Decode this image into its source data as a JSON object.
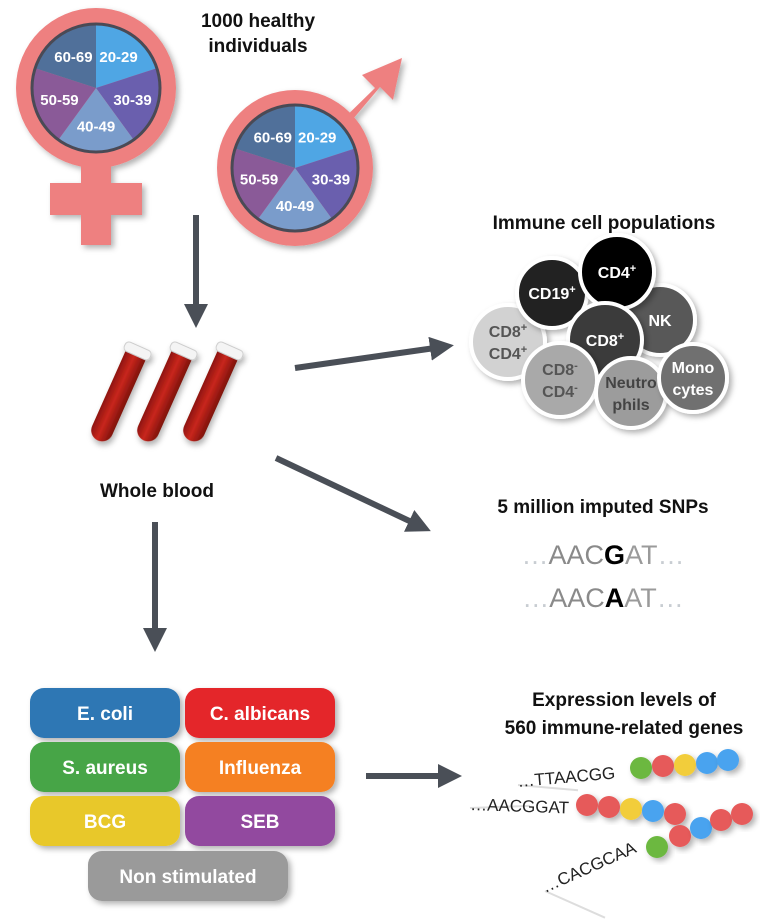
{
  "title": {
    "line1": "1000 healthy",
    "line2": "individuals"
  },
  "age_groups": [
    {
      "label": "20-29",
      "color": "#4fa6e4"
    },
    {
      "label": "30-39",
      "color": "#6a5fae"
    },
    {
      "label": "40-49",
      "color": "#7a9ccb"
    },
    {
      "label": "50-59",
      "color": "#8a5a98"
    },
    {
      "label": "60-69",
      "color": "#50709a"
    }
  ],
  "symbol_color": "#ee8080",
  "arrow_color": "#4a4f57",
  "whole_blood": "Whole blood",
  "immune": {
    "title": "Immune cell populations",
    "cells": [
      {
        "lines": [
          [
            {
              "t": "CD8"
            },
            {
              "s": "+"
            }
          ],
          [
            {
              "t": "CD4"
            },
            {
              "s": "+"
            }
          ]
        ],
        "fill": "#d2d2d2",
        "text": "#555555"
      },
      {
        "lines": [
          [
            {
              "t": "CD19"
            },
            {
              "s": "+"
            }
          ]
        ],
        "fill": "#222222",
        "text": "#ffffff"
      },
      {
        "lines": [
          [
            {
              "t": "NK"
            }
          ]
        ],
        "fill": "#585858",
        "text": "#ffffff"
      },
      {
        "lines": [
          [
            {
              "t": "CD4"
            },
            {
              "s": "+"
            }
          ]
        ],
        "fill": "#000000",
        "text": "#ffffff"
      },
      {
        "lines": [
          [
            {
              "t": "CD8"
            },
            {
              "s": "+"
            }
          ]
        ],
        "fill": "#3a3a3a",
        "text": "#ffffff"
      },
      {
        "lines": [
          [
            {
              "t": "CD8"
            },
            {
              "s": "-"
            }
          ],
          [
            {
              "t": "CD4"
            },
            {
              "s": "-"
            }
          ]
        ],
        "fill": "#a9a9a9",
        "text": "#555555"
      },
      {
        "lines": [
          [
            {
              "t": "Neutro"
            }
          ],
          [
            {
              "t": "phils"
            }
          ]
        ],
        "fill": "#9c9c9c",
        "text": "#444444"
      },
      {
        "lines": [
          [
            {
              "t": "Mono"
            }
          ],
          [
            {
              "t": "cytes"
            }
          ]
        ],
        "fill": "#707070",
        "text": "#ffffff"
      }
    ]
  },
  "snps": {
    "title": "5 million imputed SNPs",
    "sequences": [
      {
        "pre": "…",
        "left": "AAC",
        "variant": "G",
        "right": "AT",
        "post": "…"
      },
      {
        "pre": "…",
        "left": "AAC",
        "variant": "A",
        "right": "AT",
        "post": "…"
      }
    ]
  },
  "stimuli": [
    {
      "label": "E. coli",
      "color": "#2f77b4"
    },
    {
      "label": "C. albicans",
      "color": "#e4262b"
    },
    {
      "label": "S. aureus",
      "color": "#47a547"
    },
    {
      "label": "Influenza",
      "color": "#f58021"
    },
    {
      "label": "BCG",
      "color": "#e8c82b"
    },
    {
      "label": "SEB",
      "color": "#924a9f"
    },
    {
      "label": "Non stimulated",
      "color": "#9a9a9a"
    }
  ],
  "expression": {
    "title_line1": "Expression levels of",
    "title_line2": "560 immune-related genes",
    "bead_colors": {
      "green": "#6cb83f",
      "red": "#e65a5a",
      "yellow": "#f2cd3a",
      "blue": "#4aa3ef"
    },
    "sequences": [
      {
        "text": "…TTAACGG",
        "beads": [
          "green",
          "red",
          "yellow",
          "blue",
          "blue"
        ]
      },
      {
        "text": "…AACGGAT",
        "beads": [
          "red",
          "red",
          "yellow",
          "blue",
          "red"
        ]
      },
      {
        "text": "…CACGCAA",
        "beads": [
          "green",
          "red",
          "blue",
          "red",
          "red"
        ]
      }
    ]
  }
}
